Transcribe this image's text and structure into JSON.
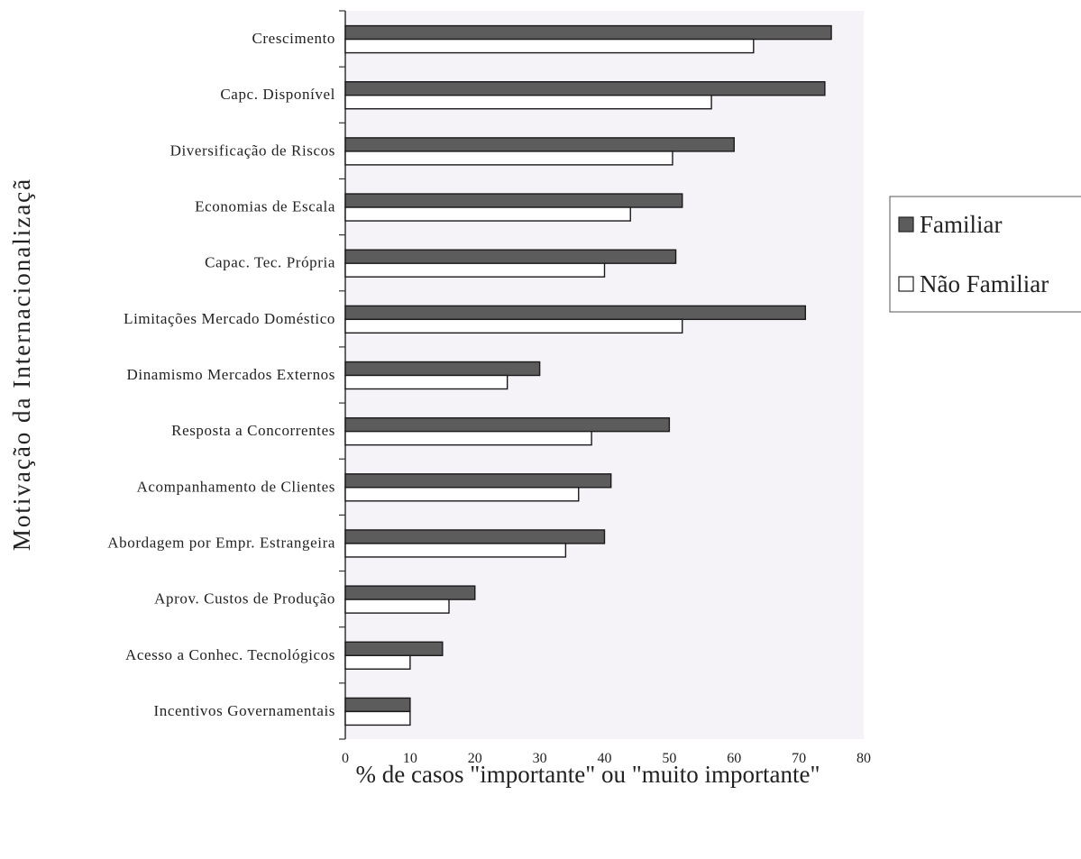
{
  "chart_data": {
    "type": "bar",
    "orientation": "horizontal",
    "categories": [
      "Crescimento",
      "Capc. Disponível",
      "Diversificação de Riscos",
      "Economias de Escala",
      "Capac. Tec. Própria",
      "Limitações Mercado Doméstico",
      "Dinamismo Mercados Externos",
      "Resposta a Concorrentes",
      "Acompanhamento de Clientes",
      "Abordagem por Empr. Estrangeira",
      "Aprov. Custos de Produção",
      "Acesso a Conhec. Tecnológicos",
      "Incentivos Governamentais"
    ],
    "series": [
      {
        "name": "Familiar",
        "color": "#5c5c5c",
        "values": [
          75,
          74,
          60,
          52,
          51,
          71,
          30,
          50,
          41,
          40,
          20,
          15,
          10
        ]
      },
      {
        "name": "Não Familiar",
        "color": "#ffffff",
        "values": [
          63,
          56.5,
          50.5,
          44,
          40,
          52,
          25,
          38,
          36,
          34,
          16,
          10,
          10
        ]
      }
    ],
    "xlabel": "% de casos \"importante\" ou \"muito importante\"",
    "ylabel": "Motivação da Internacionalizaçã",
    "xlim": [
      0,
      80
    ],
    "xticks": [
      "0",
      "10",
      "20",
      "30",
      "40",
      "50",
      "60",
      "70",
      "80"
    ],
    "grid": false,
    "legend_position": "right",
    "plot_background": "#f5f3f8"
  }
}
